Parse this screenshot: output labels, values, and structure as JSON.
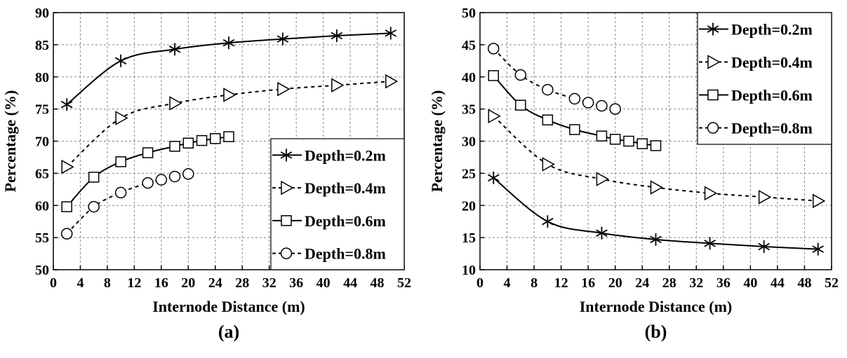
{
  "chart_data": [
    {
      "type": "line",
      "panel": "a",
      "caption": "(a)",
      "xlabel": "Internode Distance (m)",
      "ylabel": "Percentage (%)",
      "xlim": [
        0,
        52
      ],
      "ylim": [
        50,
        90
      ],
      "xticks": [
        0,
        4,
        8,
        12,
        16,
        20,
        24,
        28,
        32,
        36,
        40,
        44,
        48,
        52
      ],
      "yticks": [
        50,
        55,
        60,
        65,
        70,
        75,
        80,
        85,
        90
      ],
      "grid": true,
      "legend_position": "bottom-right",
      "series": [
        {
          "name": "Depth=0.2m",
          "marker": "star",
          "line": "solid",
          "x": [
            2,
            10,
            18,
            26,
            34,
            42,
            50
          ],
          "y": [
            75.7,
            82.5,
            84.3,
            85.3,
            85.9,
            86.4,
            86.8
          ]
        },
        {
          "name": "Depth=0.4m",
          "marker": "triangle-right",
          "line": "dashed",
          "x": [
            2,
            10,
            18,
            26,
            34,
            42,
            50
          ],
          "y": [
            66.0,
            73.6,
            75.9,
            77.2,
            78.1,
            78.7,
            79.3
          ]
        },
        {
          "name": "Depth=0.6m",
          "marker": "square",
          "line": "solid",
          "x": [
            2,
            6,
            10,
            14,
            18,
            20,
            22,
            24,
            26
          ],
          "y": [
            59.8,
            64.4,
            66.8,
            68.2,
            69.2,
            69.7,
            70.1,
            70.4,
            70.7
          ]
        },
        {
          "name": "Depth=0.8m",
          "marker": "circle",
          "line": "dashed",
          "x": [
            2,
            6,
            10,
            14,
            16,
            18,
            20
          ],
          "y": [
            55.6,
            59.8,
            62.0,
            63.5,
            64.0,
            64.5,
            64.9
          ]
        }
      ]
    },
    {
      "type": "line",
      "panel": "b",
      "caption": "(b)",
      "xlabel": "Internode Distance (m)",
      "ylabel": "Percentage (%)",
      "xlim": [
        0,
        52
      ],
      "ylim": [
        10,
        50
      ],
      "xticks": [
        0,
        4,
        8,
        12,
        16,
        20,
        24,
        28,
        32,
        36,
        40,
        44,
        48,
        52
      ],
      "yticks": [
        10,
        15,
        20,
        25,
        30,
        35,
        40,
        45,
        50
      ],
      "grid": true,
      "legend_position": "top-right",
      "series": [
        {
          "name": "Depth=0.2m",
          "marker": "star",
          "line": "solid",
          "x": [
            2,
            10,
            18,
            26,
            34,
            42,
            50
          ],
          "y": [
            24.3,
            17.5,
            15.7,
            14.7,
            14.1,
            13.6,
            13.2
          ]
        },
        {
          "name": "Depth=0.4m",
          "marker": "triangle-right",
          "line": "dashed",
          "x": [
            2,
            10,
            18,
            26,
            34,
            42,
            50
          ],
          "y": [
            33.9,
            26.4,
            24.1,
            22.8,
            21.9,
            21.3,
            20.7
          ]
        },
        {
          "name": "Depth=0.6m",
          "marker": "square",
          "line": "solid",
          "x": [
            2,
            6,
            10,
            14,
            18,
            20,
            22,
            24,
            26
          ],
          "y": [
            40.2,
            35.6,
            33.3,
            31.8,
            30.8,
            30.3,
            30.0,
            29.6,
            29.3
          ]
        },
        {
          "name": "Depth=0.8m",
          "marker": "circle",
          "line": "dashed",
          "x": [
            2,
            6,
            10,
            14,
            16,
            18,
            20
          ],
          "y": [
            44.4,
            40.3,
            38.0,
            36.6,
            36.0,
            35.5,
            35.0
          ]
        }
      ]
    }
  ]
}
